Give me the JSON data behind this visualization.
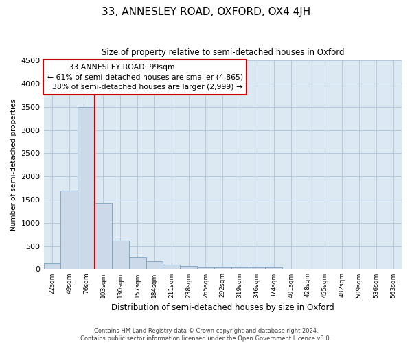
{
  "title": "33, ANNESLEY ROAD, OXFORD, OX4 4JH",
  "subtitle": "Size of property relative to semi-detached houses in Oxford",
  "xlabel": "Distribution of semi-detached houses by size in Oxford",
  "ylabel": "Number of semi-detached properties",
  "footer_line1": "Contains HM Land Registry data © Crown copyright and database right 2024.",
  "footer_line2": "Contains public sector information licensed under the Open Government Licence v3.0.",
  "bar_color": "#ccd9e8",
  "bar_edge_color": "#7aa0c0",
  "grid_color": "#afc5d8",
  "bg_color": "#dce8f2",
  "annotation_box_color": "#cc0000",
  "vline_color": "#cc0000",
  "categories": [
    "22sqm",
    "49sqm",
    "76sqm",
    "103sqm",
    "130sqm",
    "157sqm",
    "184sqm",
    "211sqm",
    "238sqm",
    "265sqm",
    "292sqm",
    "319sqm",
    "346sqm",
    "374sqm",
    "401sqm",
    "428sqm",
    "455sqm",
    "482sqm",
    "509sqm",
    "536sqm",
    "563sqm"
  ],
  "values": [
    120,
    1700,
    3500,
    1430,
    620,
    255,
    170,
    100,
    60,
    55,
    50,
    55,
    50,
    50,
    0,
    0,
    0,
    0,
    0,
    0,
    0
  ],
  "ylim": [
    0,
    4500
  ],
  "yticks": [
    0,
    500,
    1000,
    1500,
    2000,
    2500,
    3000,
    3500,
    4000,
    4500
  ],
  "property_label": "33 ANNESLEY ROAD: 99sqm",
  "smaller_pct": "61%",
  "smaller_count": "4,865",
  "larger_pct": "38%",
  "larger_count": "2,999",
  "vline_bin_index": 3
}
